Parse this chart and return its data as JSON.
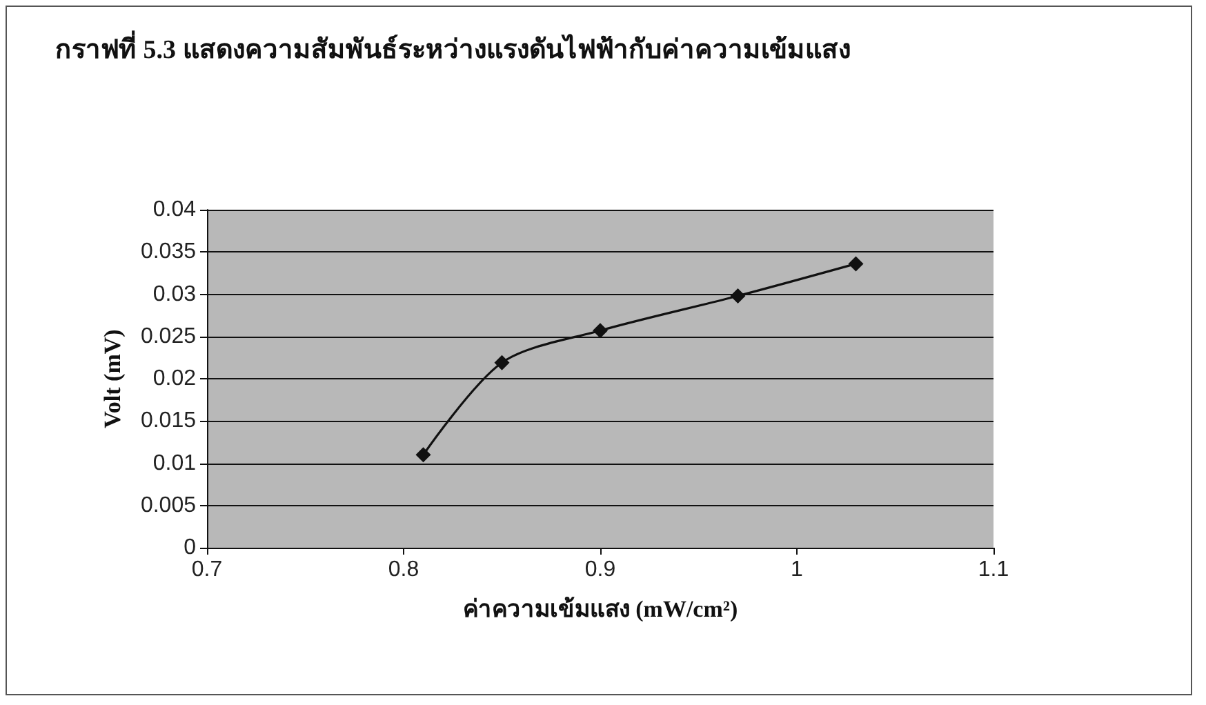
{
  "chart_data": {
    "type": "line",
    "title": "กราฟที่ 5.3 แสดงความสัมพันธ์ระหว่างแรงดันไฟฟ้ากับค่าความเข้มแสง",
    "xlabel": "ค่าความเข้มแสง (mW/cm²)",
    "ylabel": "Volt (mV)",
    "x": [
      0.81,
      0.85,
      0.9,
      0.97,
      1.03
    ],
    "series": [
      {
        "color": "#111111",
        "values": [
          0.011,
          0.0219,
          0.0257,
          0.0298,
          0.0336
        ]
      }
    ],
    "xlim": [
      0.7,
      1.1
    ],
    "xticks": [
      0.7,
      0.8,
      0.9,
      1,
      1.1
    ],
    "ylim": [
      0,
      0.04
    ],
    "yticks": [
      0,
      0.005,
      0.01,
      0.015,
      0.02,
      0.025,
      0.03,
      0.035,
      0.04
    ],
    "grid": "y",
    "marker": "diamond",
    "line_style": "solid"
  }
}
